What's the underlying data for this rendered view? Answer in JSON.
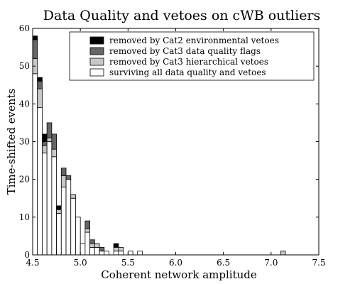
{
  "chart_data": {
    "type": "bar",
    "stacked": true,
    "title": "Data Quality and vetoes on cWB outliers",
    "xlabel": "Coherent network amplitude",
    "ylabel": "Time-shifted events",
    "xlim": [
      4.5,
      7.5
    ],
    "ylim": [
      0,
      60
    ],
    "x_ticks": [
      "4.5",
      "5.0",
      "5.5",
      "6.0",
      "6.5",
      "7.0",
      "7.5"
    ],
    "y_ticks": [
      "0",
      "10",
      "20",
      "30",
      "40",
      "50",
      "60"
    ],
    "bin_width": 0.05,
    "grid": false,
    "legend_position": "top-right",
    "x": [
      4.525,
      4.575,
      4.625,
      4.675,
      4.725,
      4.775,
      4.825,
      4.875,
      4.925,
      4.975,
      5.025,
      5.075,
      5.125,
      5.175,
      5.225,
      5.275,
      5.325,
      5.375,
      5.425,
      5.475,
      5.525,
      5.575,
      5.625,
      5.675,
      5.725,
      5.775,
      5.825,
      5.875,
      7.125
    ],
    "series": [
      {
        "name": "surviving all data quality and vetoes",
        "color": "#ffffff",
        "values": [
          48,
          39,
          27,
          30,
          26,
          11,
          18,
          20,
          15,
          10,
          3,
          6,
          2,
          2,
          1,
          1,
          0,
          1,
          1,
          0,
          1,
          0,
          1,
          0,
          0,
          0,
          0,
          0,
          0
        ]
      },
      {
        "name": "removed by Cat3 hierarchical vetoes",
        "color": "#c8c8c8",
        "values": [
          4,
          5,
          2,
          1,
          2,
          1,
          3,
          0,
          1,
          0,
          0,
          1,
          1,
          1,
          0,
          0,
          0,
          1,
          1,
          0,
          0,
          0,
          0,
          0,
          0,
          0,
          0,
          0,
          1
        ]
      },
      {
        "name": "removed by Cat3 data quality flags",
        "color": "#666666",
        "values": [
          5,
          2,
          1,
          4,
          4,
          0,
          2,
          1,
          0,
          0,
          0,
          2,
          1,
          0,
          1,
          0,
          0,
          0,
          0,
          0,
          0,
          0,
          0,
          0,
          0,
          0,
          0,
          0,
          0
        ]
      },
      {
        "name": "removed by Cat2 environmental vetoes",
        "color": "#000000",
        "values": [
          1,
          1,
          2,
          0,
          0,
          1,
          0,
          0,
          0,
          0,
          0,
          0,
          0,
          0,
          0,
          0,
          0,
          1,
          0,
          0,
          0,
          0,
          0,
          0,
          0,
          0,
          0,
          0,
          0
        ]
      }
    ],
    "legend_order": [
      "removed by Cat2 environmental vetoes",
      "removed by Cat3 data quality flags",
      "removed by Cat3 hierarchical vetoes",
      "surviving all data quality and vetoes"
    ]
  }
}
